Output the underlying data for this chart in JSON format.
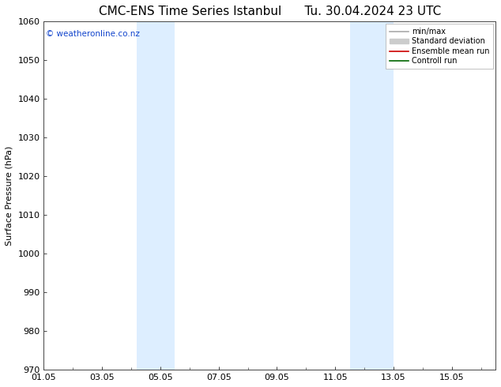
{
  "title": "CMC-ENS Time Series Istanbul",
  "title_right": "Tu. 30.04.2024 23 UTC",
  "ylabel": "Surface Pressure (hPa)",
  "xlim": [
    1.0,
    16.5
  ],
  "ylim": [
    970,
    1060
  ],
  "yticks": [
    970,
    980,
    990,
    1000,
    1010,
    1020,
    1030,
    1040,
    1050,
    1060
  ],
  "xtick_labels": [
    "01.05",
    "03.05",
    "05.05",
    "07.05",
    "09.05",
    "11.05",
    "13.05",
    "15.05"
  ],
  "xtick_positions": [
    1,
    3,
    5,
    7,
    9,
    11,
    13,
    15
  ],
  "shaded_bands": [
    {
      "xmin": 4.2,
      "xmax": 5.5
    },
    {
      "xmin": 11.5,
      "xmax": 13.0
    }
  ],
  "band_color": "#ddeeff",
  "watermark_text": "© weatheronline.co.nz",
  "watermark_color": "#1144cc",
  "legend_entries": [
    {
      "label": "min/max",
      "color": "#aaaaaa",
      "linewidth": 1.2,
      "linestyle": "-",
      "type": "line"
    },
    {
      "label": "Standard deviation",
      "color": "#cccccc",
      "linewidth": 6,
      "linestyle": "-",
      "type": "patch"
    },
    {
      "label": "Ensemble mean run",
      "color": "#cc0000",
      "linewidth": 1.2,
      "linestyle": "-",
      "type": "line"
    },
    {
      "label": "Controll run",
      "color": "#006600",
      "linewidth": 1.2,
      "linestyle": "-",
      "type": "line"
    }
  ],
  "bg_color": "#ffffff",
  "figsize": [
    6.34,
    4.9
  ],
  "dpi": 100,
  "title_fontsize": 11,
  "tick_fontsize": 8,
  "ylabel_fontsize": 8
}
